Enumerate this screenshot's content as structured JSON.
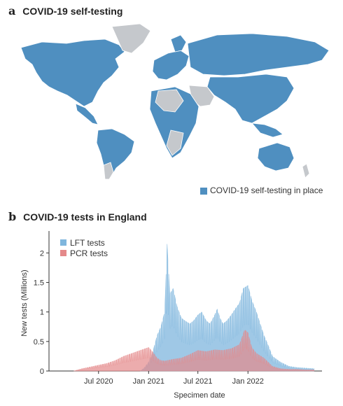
{
  "panel_a": {
    "letter": "a",
    "title": "COVID-19 self-testing",
    "legend_label": "COVID-19 self-testing in place",
    "colors": {
      "in_place": "#4f8fc0",
      "not_in_place": "#c5c8cc",
      "ocean": "#ffffff"
    }
  },
  "panel_b": {
    "letter": "b",
    "title": "COVID-19 tests in England"
  },
  "chart_data": {
    "type": "area",
    "title": "COVID-19 tests in England",
    "xlabel": "Specimen date",
    "ylabel": "New tests (Millions)",
    "ylim": [
      0,
      2.3
    ],
    "xlim": [
      "2020-01-01",
      "2022-09-30"
    ],
    "yticks": [
      0,
      0.5,
      1,
      1.5,
      2
    ],
    "ytick_labels": [
      "0",
      "0.5",
      "1",
      "1.5",
      "2"
    ],
    "xticks": [
      "2020-07-01",
      "2021-01-01",
      "2021-07-01",
      "2022-01-01"
    ],
    "xtick_labels": [
      "Jul 2020",
      "Jan 2021",
      "Jul 2021",
      "Jan 2022"
    ],
    "legend_position": "top-left",
    "series": [
      {
        "name": "LFT tests",
        "color": "#7fb6dd",
        "points": [
          [
            "2020-12-01",
            0.0
          ],
          [
            "2020-12-15",
            0.05
          ],
          [
            "2021-01-01",
            0.15
          ],
          [
            "2021-01-15",
            0.3
          ],
          [
            "2021-02-01",
            0.6
          ],
          [
            "2021-02-15",
            0.75
          ],
          [
            "2021-03-01",
            1.0
          ],
          [
            "2021-03-10",
            2.15
          ],
          [
            "2021-03-20",
            1.3
          ],
          [
            "2021-04-01",
            1.4
          ],
          [
            "2021-04-15",
            1.1
          ],
          [
            "2021-05-01",
            0.9
          ],
          [
            "2021-05-15",
            0.85
          ],
          [
            "2021-06-01",
            0.8
          ],
          [
            "2021-06-15",
            0.85
          ],
          [
            "2021-07-01",
            0.95
          ],
          [
            "2021-07-15",
            1.0
          ],
          [
            "2021-08-01",
            0.85
          ],
          [
            "2021-08-15",
            0.8
          ],
          [
            "2021-09-01",
            0.95
          ],
          [
            "2021-09-10",
            1.05
          ],
          [
            "2021-09-20",
            0.9
          ],
          [
            "2021-10-01",
            0.8
          ],
          [
            "2021-10-15",
            0.85
          ],
          [
            "2021-11-01",
            0.95
          ],
          [
            "2021-11-15",
            1.05
          ],
          [
            "2021-12-01",
            1.15
          ],
          [
            "2021-12-15",
            1.4
          ],
          [
            "2022-01-01",
            1.45
          ],
          [
            "2022-01-15",
            1.2
          ],
          [
            "2022-02-01",
            1.0
          ],
          [
            "2022-02-15",
            0.8
          ],
          [
            "2022-03-01",
            0.6
          ],
          [
            "2022-03-15",
            0.45
          ],
          [
            "2022-04-01",
            0.25
          ],
          [
            "2022-05-01",
            0.15
          ],
          [
            "2022-06-01",
            0.08
          ],
          [
            "2022-07-01",
            0.06
          ],
          [
            "2022-08-01",
            0.05
          ],
          [
            "2022-09-01",
            0.04
          ]
        ]
      },
      {
        "name": "PCR tests",
        "color": "#e4898a",
        "points": [
          [
            "2020-04-01",
            0.0
          ],
          [
            "2020-04-15",
            0.02
          ],
          [
            "2020-05-01",
            0.04
          ],
          [
            "2020-06-01",
            0.07
          ],
          [
            "2020-07-01",
            0.1
          ],
          [
            "2020-08-01",
            0.13
          ],
          [
            "2020-09-01",
            0.18
          ],
          [
            "2020-10-01",
            0.25
          ],
          [
            "2020-11-01",
            0.3
          ],
          [
            "2020-12-01",
            0.35
          ],
          [
            "2021-01-01",
            0.4
          ],
          [
            "2021-01-15",
            0.33
          ],
          [
            "2021-02-01",
            0.22
          ],
          [
            "2021-02-15",
            0.18
          ],
          [
            "2021-03-01",
            0.17
          ],
          [
            "2021-04-01",
            0.2
          ],
          [
            "2021-05-01",
            0.22
          ],
          [
            "2021-06-01",
            0.28
          ],
          [
            "2021-07-01",
            0.35
          ],
          [
            "2021-08-01",
            0.33
          ],
          [
            "2021-09-01",
            0.36
          ],
          [
            "2021-10-01",
            0.35
          ],
          [
            "2021-11-01",
            0.38
          ],
          [
            "2021-12-01",
            0.45
          ],
          [
            "2021-12-20",
            0.7
          ],
          [
            "2022-01-01",
            0.65
          ],
          [
            "2022-01-15",
            0.4
          ],
          [
            "2022-02-01",
            0.3
          ],
          [
            "2022-03-01",
            0.22
          ],
          [
            "2022-04-01",
            0.08
          ],
          [
            "2022-05-01",
            0.04
          ],
          [
            "2022-06-01",
            0.03
          ],
          [
            "2022-07-01",
            0.03
          ],
          [
            "2022-08-01",
            0.02
          ],
          [
            "2022-09-01",
            0.02
          ]
        ]
      }
    ]
  }
}
